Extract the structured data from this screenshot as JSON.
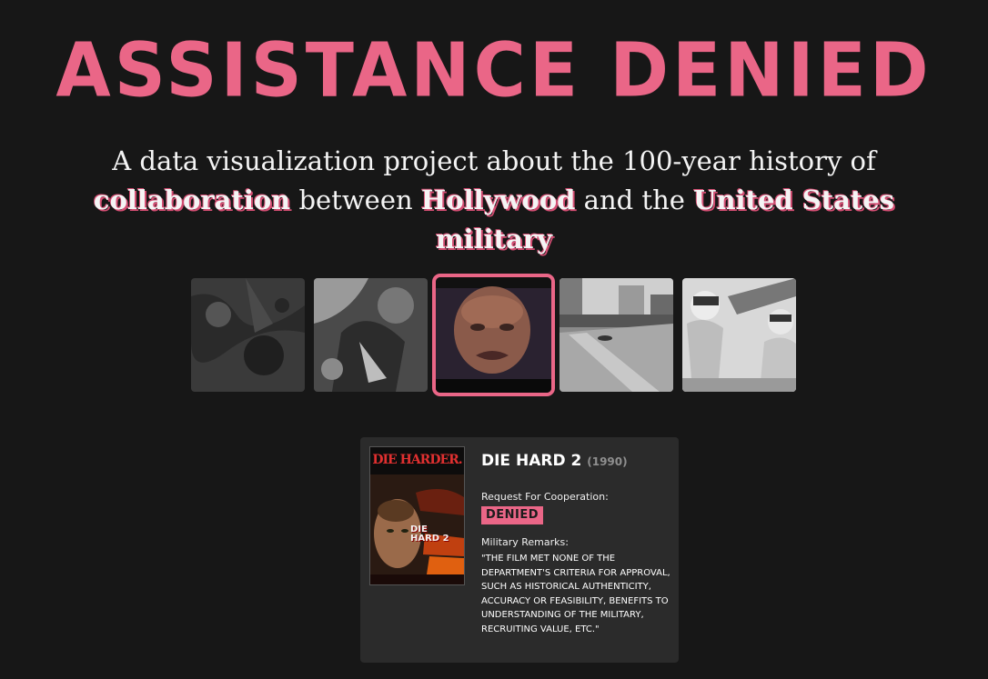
{
  "header": {
    "title": "ASSISTANCE DENIED",
    "subtitle_part1": "A data visualization project about the 100-year history of",
    "subtitle_collab": "collaboration",
    "subtitle_between": " between ",
    "subtitle_hollywood": "Hollywood",
    "subtitle_andthe": " and the ",
    "subtitle_military": "United States military"
  },
  "thumbnails": [
    {
      "name": "thumb-1",
      "active": false
    },
    {
      "name": "thumb-2",
      "active": false
    },
    {
      "name": "thumb-3",
      "active": true
    },
    {
      "name": "thumb-4",
      "active": false
    },
    {
      "name": "thumb-5",
      "active": false
    }
  ],
  "film": {
    "poster_brand": "DIE HARDER.",
    "poster_title_line1": "DIE",
    "poster_title_line2": "HARD 2",
    "title": "DIE HARD 2",
    "year": "(1990)",
    "request_label": "Request For Cooperation:",
    "status": "DENIED",
    "remarks_label": "Military Remarks:",
    "remarks": "\"THE FILM MET NONE OF THE DEPARTMENT'S CRITERIA FOR APPROVAL, SUCH AS HISTORICAL AUTHENTICITY, ACCURACY OR FEASIBILITY, BENEFITS TO UNDERSTANDING OF THE MILITARY, RECRUITING VALUE, ETC.\""
  },
  "colors": {
    "accent": "#ea6687",
    "background": "#171717",
    "card": "#2b2b2b"
  }
}
